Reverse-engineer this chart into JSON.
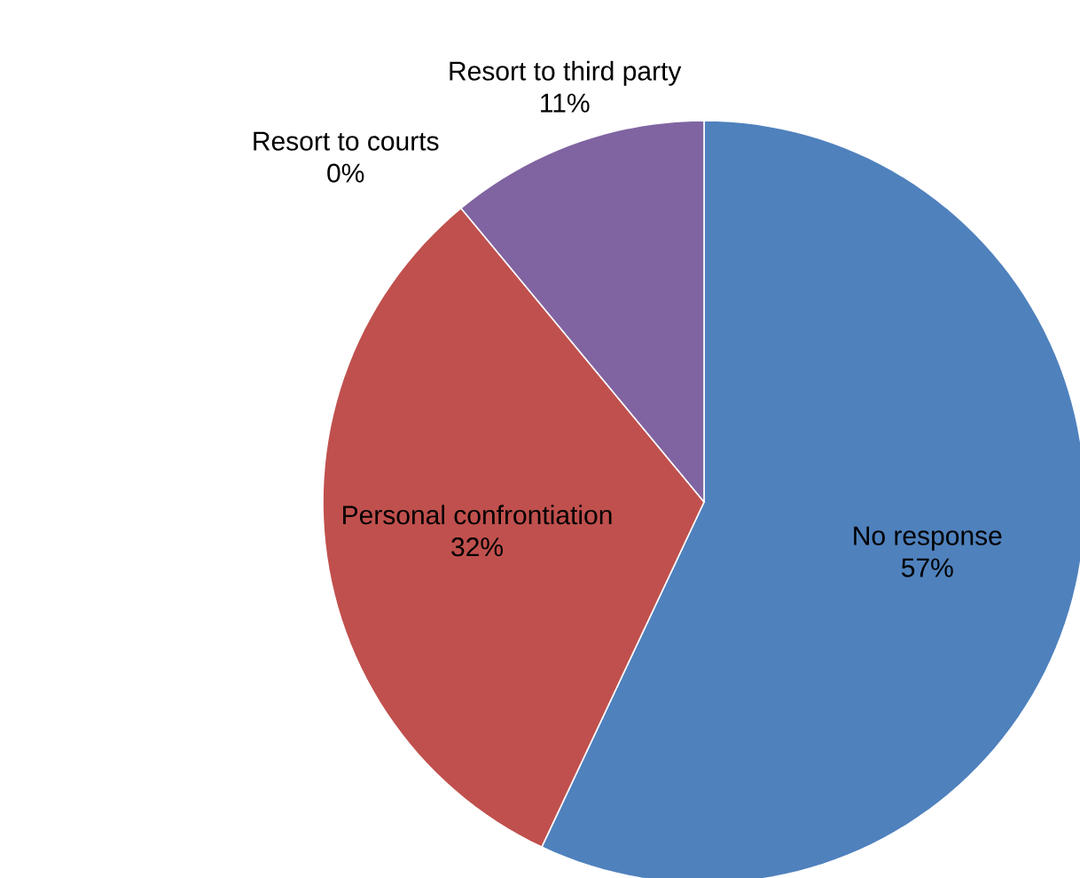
{
  "chart_data": {
    "type": "pie",
    "categories": [
      "No response",
      "Personal confrontiation",
      "Resort to courts",
      "Resort to third party"
    ],
    "values": [
      57,
      32,
      0,
      11
    ],
    "value_labels": [
      "57%",
      "32%",
      "0%",
      "11%"
    ],
    "colors": [
      "#4f81bd",
      "#c0504d",
      "#9bbb59",
      "#8064a2"
    ]
  }
}
